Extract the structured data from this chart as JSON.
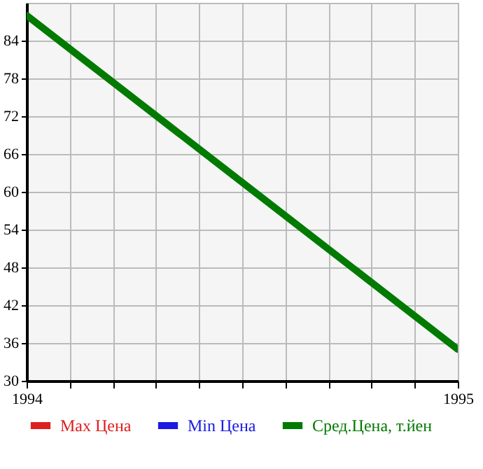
{
  "chart_data": {
    "type": "line",
    "x": [
      1994,
      1995
    ],
    "xlim": [
      1994,
      1995
    ],
    "xticks": [
      1994,
      {
        "value": 1994.1,
        "label": null
      },
      {
        "value": 1994.2,
        "label": null
      },
      {
        "value": 1994.3,
        "label": null
      },
      {
        "value": 1994.4,
        "label": null
      },
      {
        "value": 1994.5,
        "label": null
      },
      {
        "value": 1994.6,
        "label": null
      },
      {
        "value": 1994.7,
        "label": null
      },
      {
        "value": 1994.8,
        "label": null
      },
      {
        "value": 1994.9,
        "label": null
      },
      1995
    ],
    "ylim": [
      30,
      90
    ],
    "yticks": [
      30,
      36,
      42,
      48,
      54,
      60,
      66,
      72,
      78,
      84
    ],
    "grid": true,
    "legend": "bottom",
    "series": [
      {
        "name": "Max Цена",
        "color": "#dd1f1f",
        "values": [
          null,
          null
        ]
      },
      {
        "name": "Min Цена",
        "color": "#1a1ae0",
        "values": [
          null,
          null
        ]
      },
      {
        "name": "Сред.Цена, т.йен",
        "color": "#007a00",
        "values": [
          88,
          35
        ]
      }
    ]
  }
}
